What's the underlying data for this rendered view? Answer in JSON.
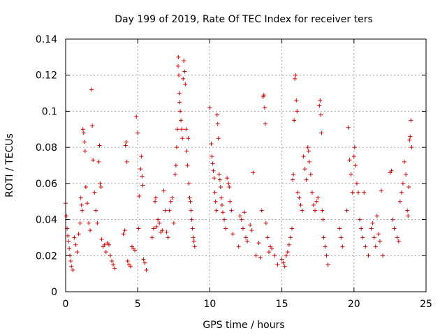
{
  "chart_data": {
    "type": "scatter",
    "title": "Day 199 of 2019, Rate Of TEC Index for receiver ters",
    "xlabel": "GPS time / hours",
    "ylabel": "ROTI / TECUs",
    "xlim": [
      0,
      25
    ],
    "ylim": [
      0,
      0.14
    ],
    "xticks": [
      0,
      5,
      10,
      15,
      20,
      25
    ],
    "xtick_labels": [
      "0",
      "5",
      "10",
      "15",
      "20",
      "25"
    ],
    "yticks": [
      0,
      0.02,
      0.04,
      0.06,
      0.08,
      0.1,
      0.12,
      0.14
    ],
    "ytick_labels": [
      "0",
      "0.02",
      "0.04",
      "0.06",
      "0.08",
      "0.1",
      "0.12",
      "0.14"
    ],
    "grid": true,
    "marker": "+",
    "color": "#e00000",
    "series": [
      {
        "name": "ROTI",
        "points": [
          [
            0.0,
            0.049
          ],
          [
            0.05,
            0.042
          ],
          [
            0.1,
            0.035
          ],
          [
            0.15,
            0.031
          ],
          [
            0.2,
            0.028
          ],
          [
            0.25,
            0.024
          ],
          [
            0.3,
            0.02
          ],
          [
            0.35,
            0.017
          ],
          [
            0.4,
            0.014
          ],
          [
            0.5,
            0.012
          ],
          [
            0.6,
            0.03
          ],
          [
            0.7,
            0.026
          ],
          [
            0.8,
            0.022
          ],
          [
            0.9,
            0.032
          ],
          [
            1.0,
            0.038
          ],
          [
            1.05,
            0.052
          ],
          [
            1.1,
            0.048
          ],
          [
            1.15,
            0.045
          ],
          [
            1.2,
            0.09
          ],
          [
            1.25,
            0.088
          ],
          [
            1.3,
            0.083
          ],
          [
            1.35,
            0.078
          ],
          [
            1.4,
            0.058
          ],
          [
            1.5,
            0.049
          ],
          [
            1.6,
            0.038
          ],
          [
            1.7,
            0.034
          ],
          [
            1.8,
            0.112
          ],
          [
            1.85,
            0.092
          ],
          [
            1.9,
            0.073
          ],
          [
            2.0,
            0.055
          ],
          [
            2.1,
            0.045
          ],
          [
            2.2,
            0.038
          ],
          [
            2.3,
            0.072
          ],
          [
            2.35,
            0.081
          ],
          [
            2.4,
            0.06
          ],
          [
            2.45,
            0.058
          ],
          [
            2.5,
            0.029
          ],
          [
            2.6,
            0.025
          ],
          [
            2.7,
            0.026
          ],
          [
            2.8,
            0.022
          ],
          [
            2.9,
            0.027
          ],
          [
            3.0,
            0.026
          ],
          [
            3.1,
            0.02
          ],
          [
            3.2,
            0.017
          ],
          [
            3.3,
            0.015
          ],
          [
            3.4,
            0.013
          ],
          [
            4.0,
            0.032
          ],
          [
            4.1,
            0.034
          ],
          [
            4.15,
            0.081
          ],
          [
            4.2,
            0.083
          ],
          [
            4.25,
            0.072
          ],
          [
            4.3,
            0.017
          ],
          [
            4.4,
            0.015
          ],
          [
            4.5,
            0.014
          ],
          [
            4.6,
            0.025
          ],
          [
            4.7,
            0.024
          ],
          [
            4.8,
            0.023
          ],
          [
            4.9,
            0.097
          ],
          [
            5.0,
            0.088
          ],
          [
            5.05,
            0.035
          ],
          [
            5.1,
            0.053
          ],
          [
            5.2,
            0.068
          ],
          [
            5.25,
            0.075
          ],
          [
            5.3,
            0.064
          ],
          [
            5.35,
            0.059
          ],
          [
            5.4,
            0.018
          ],
          [
            5.5,
            0.016
          ],
          [
            5.6,
            0.012
          ],
          [
            6.0,
            0.03
          ],
          [
            6.1,
            0.035
          ],
          [
            6.2,
            0.05
          ],
          [
            6.25,
            0.052
          ],
          [
            6.3,
            0.036
          ],
          [
            6.4,
            0.04
          ],
          [
            6.5,
            0.038
          ],
          [
            6.6,
            0.033
          ],
          [
            6.7,
            0.034
          ],
          [
            6.8,
            0.056
          ],
          [
            6.9,
            0.045
          ],
          [
            7.0,
            0.033
          ],
          [
            7.1,
            0.03
          ],
          [
            7.2,
            0.045
          ],
          [
            7.3,
            0.05
          ],
          [
            7.4,
            0.052
          ],
          [
            7.5,
            0.038
          ],
          [
            7.6,
            0.065
          ],
          [
            7.65,
            0.07
          ],
          [
            7.7,
            0.08
          ],
          [
            7.75,
            0.09
          ],
          [
            7.8,
            0.125
          ],
          [
            7.82,
            0.13
          ],
          [
            7.85,
            0.12
          ],
          [
            7.88,
            0.11
          ],
          [
            7.9,
            0.105
          ],
          [
            7.95,
            0.1
          ],
          [
            8.0,
            0.095
          ],
          [
            8.05,
            0.09
          ],
          [
            8.1,
            0.085
          ],
          [
            8.15,
            0.118
          ],
          [
            8.2,
            0.128
          ],
          [
            8.25,
            0.122
          ],
          [
            8.3,
            0.115
          ],
          [
            8.35,
            0.09
          ],
          [
            8.4,
            0.078
          ],
          [
            8.45,
            0.07
          ],
          [
            8.5,
            0.085
          ],
          [
            8.55,
            0.06
          ],
          [
            8.6,
            0.052
          ],
          [
            8.65,
            0.05
          ],
          [
            8.7,
            0.045
          ],
          [
            8.75,
            0.04
          ],
          [
            8.8,
            0.035
          ],
          [
            8.85,
            0.03
          ],
          [
            8.9,
            0.028
          ],
          [
            8.95,
            0.025
          ],
          [
            10.0,
            0.102
          ],
          [
            10.1,
            0.082
          ],
          [
            10.15,
            0.075
          ],
          [
            10.2,
            0.071
          ],
          [
            10.25,
            0.067
          ],
          [
            10.3,
            0.063
          ],
          [
            10.35,
            0.055
          ],
          [
            10.4,
            0.05
          ],
          [
            10.45,
            0.045
          ],
          [
            10.5,
            0.098
          ],
          [
            10.55,
            0.093
          ],
          [
            10.6,
            0.085
          ],
          [
            10.65,
            0.065
          ],
          [
            10.7,
            0.062
          ],
          [
            10.75,
            0.058
          ],
          [
            10.8,
            0.052
          ],
          [
            10.85,
            0.048
          ],
          [
            10.9,
            0.044
          ],
          [
            11.0,
            0.04
          ],
          [
            11.1,
            0.035
          ],
          [
            11.2,
            0.063
          ],
          [
            11.3,
            0.06
          ],
          [
            11.35,
            0.058
          ],
          [
            11.4,
            0.05
          ],
          [
            11.5,
            0.045
          ],
          [
            11.6,
            0.032
          ],
          [
            12.0,
            0.025
          ],
          [
            12.1,
            0.042
          ],
          [
            12.2,
            0.04
          ],
          [
            12.3,
            0.035
          ],
          [
            12.4,
            0.044
          ],
          [
            12.5,
            0.03
          ],
          [
            12.6,
            0.028
          ],
          [
            12.8,
            0.037
          ],
          [
            12.9,
            0.034
          ],
          [
            13.0,
            0.066
          ],
          [
            13.2,
            0.02
          ],
          [
            13.4,
            0.027
          ],
          [
            13.5,
            0.019
          ],
          [
            13.6,
            0.045
          ],
          [
            13.7,
            0.108
          ],
          [
            13.75,
            0.109
          ],
          [
            13.8,
            0.102
          ],
          [
            13.85,
            0.093
          ],
          [
            13.9,
            0.038
          ],
          [
            14.0,
            0.03
          ],
          [
            14.1,
            0.022
          ],
          [
            14.2,
            0.025
          ],
          [
            14.3,
            0.024
          ],
          [
            14.5,
            0.02
          ],
          [
            14.7,
            0.015
          ],
          [
            15.0,
            0.018
          ],
          [
            15.1,
            0.016
          ],
          [
            15.2,
            0.014
          ],
          [
            15.3,
            0.02
          ],
          [
            15.4,
            0.022
          ],
          [
            15.5,
            0.026
          ],
          [
            15.6,
            0.03
          ],
          [
            15.7,
            0.035
          ],
          [
            15.75,
            0.062
          ],
          [
            15.8,
            0.065
          ],
          [
            15.85,
            0.095
          ],
          [
            15.9,
            0.118
          ],
          [
            15.95,
            0.12
          ],
          [
            16.0,
            0.106
          ],
          [
            16.05,
            0.1
          ],
          [
            16.1,
            0.055
          ],
          [
            16.2,
            0.052
          ],
          [
            16.3,
            0.048
          ],
          [
            16.4,
            0.045
          ],
          [
            16.5,
            0.075
          ],
          [
            16.6,
            0.068
          ],
          [
            16.7,
            0.062
          ],
          [
            16.8,
            0.08
          ],
          [
            16.85,
            0.078
          ],
          [
            16.9,
            0.072
          ],
          [
            17.0,
            0.065
          ],
          [
            17.1,
            0.055
          ],
          [
            17.2,
            0.048
          ],
          [
            17.3,
            0.045
          ],
          [
            17.4,
            0.05
          ],
          [
            17.5,
            0.052
          ],
          [
            17.6,
            0.103
          ],
          [
            17.65,
            0.106
          ],
          [
            17.7,
            0.098
          ],
          [
            17.75,
            0.088
          ],
          [
            17.8,
            0.045
          ],
          [
            17.85,
            0.04
          ],
          [
            17.9,
            0.03
          ],
          [
            18.0,
            0.025
          ],
          [
            18.1,
            0.02
          ],
          [
            18.2,
            0.015
          ],
          [
            19.0,
            0.035
          ],
          [
            19.1,
            0.03
          ],
          [
            19.2,
            0.025
          ],
          [
            19.5,
            0.045
          ],
          [
            19.6,
            0.091
          ],
          [
            19.7,
            0.073
          ],
          [
            19.8,
            0.065
          ],
          [
            19.9,
            0.055
          ],
          [
            20.0,
            0.075
          ],
          [
            20.05,
            0.08
          ],
          [
            20.1,
            0.07
          ],
          [
            20.2,
            0.06
          ],
          [
            20.3,
            0.055
          ],
          [
            20.4,
            0.04
          ],
          [
            20.5,
            0.035
          ],
          [
            20.6,
            0.03
          ],
          [
            20.7,
            0.055
          ],
          [
            20.8,
            0.025
          ],
          [
            21.0,
            0.02
          ],
          [
            21.2,
            0.035
          ],
          [
            21.3,
            0.038
          ],
          [
            21.4,
            0.03
          ],
          [
            21.5,
            0.025
          ],
          [
            21.6,
            0.042
          ],
          [
            21.7,
            0.032
          ],
          [
            21.8,
            0.028
          ],
          [
            21.9,
            0.056
          ],
          [
            22.0,
            0.02
          ],
          [
            22.5,
            0.066
          ],
          [
            22.6,
            0.067
          ],
          [
            22.7,
            0.04
          ],
          [
            22.8,
            0.035
          ],
          [
            23.0,
            0.03
          ],
          [
            23.1,
            0.028
          ],
          [
            23.2,
            0.05
          ],
          [
            23.3,
            0.055
          ],
          [
            23.4,
            0.06
          ],
          [
            23.5,
            0.072
          ],
          [
            23.6,
            0.065
          ],
          [
            23.7,
            0.045
          ],
          [
            23.75,
            0.042
          ],
          [
            23.8,
            0.058
          ],
          [
            23.85,
            0.084
          ],
          [
            23.9,
            0.086
          ],
          [
            23.95,
            0.095
          ],
          [
            24.0,
            0.08
          ]
        ]
      }
    ]
  }
}
